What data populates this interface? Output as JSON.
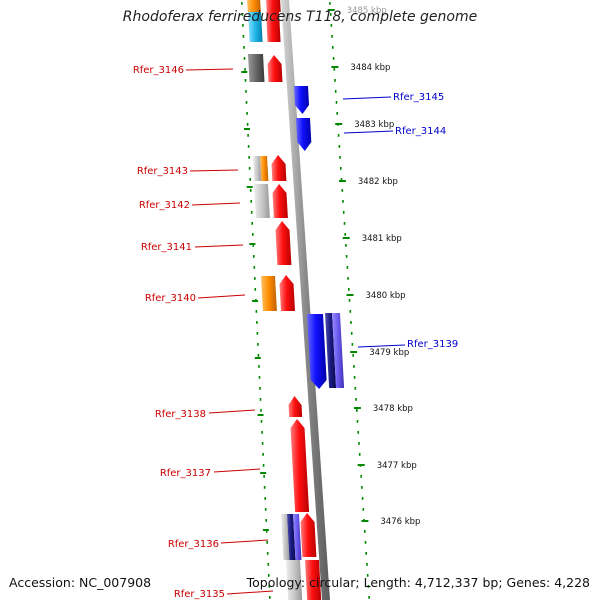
{
  "title": "Rhodoferax ferrireducens T118, complete genome",
  "footer": {
    "accession": "Accession: NC_007908",
    "summary": "Topology: circular; Length: 4,712,337 bp; Genes: 4,228"
  },
  "colors": {
    "forward": "#ff1a1a",
    "reverse": "#1a1aff",
    "navy": "#1a1a7a",
    "orange": "#ff8c00",
    "cyan": "#20b8e8",
    "gray": "#c8c8c8",
    "dark_gray": "#666666",
    "label_left": "#cc0000",
    "label_right": "#0000cc",
    "ruler": "#008800"
  },
  "ruler": {
    "ticks": [
      {
        "kbp": 3485,
        "label": "3485 kbp"
      },
      {
        "kbp": 3484,
        "label": "3484 kbp"
      },
      {
        "kbp": 3483,
        "label": "3483 kbp"
      },
      {
        "kbp": 3482,
        "label": "3482 kbp"
      },
      {
        "kbp": 3481,
        "label": "3481 kbp"
      },
      {
        "kbp": 3480,
        "label": "3480 kbp"
      },
      {
        "kbp": 3479,
        "label": "3479 kbp"
      },
      {
        "kbp": 3478,
        "label": "3478 kbp"
      },
      {
        "kbp": 3477,
        "label": "3477 kbp"
      },
      {
        "kbp": 3476,
        "label": "3476 kbp"
      }
    ]
  },
  "gene_labels": [
    {
      "name": "Rfer_3146",
      "side": "left"
    },
    {
      "name": "Rfer_3145",
      "side": "right"
    },
    {
      "name": "Rfer_3144",
      "side": "right"
    },
    {
      "name": "Rfer_3143",
      "side": "left"
    },
    {
      "name": "Rfer_3142",
      "side": "left"
    },
    {
      "name": "Rfer_3141",
      "side": "left"
    },
    {
      "name": "Rfer_3140",
      "side": "left"
    },
    {
      "name": "Rfer_3139",
      "side": "right"
    },
    {
      "name": "Rfer_3138",
      "side": "left"
    },
    {
      "name": "Rfer_3137",
      "side": "left"
    },
    {
      "name": "Rfer_3136",
      "side": "left"
    },
    {
      "name": "Rfer_3135",
      "side": "left"
    }
  ]
}
